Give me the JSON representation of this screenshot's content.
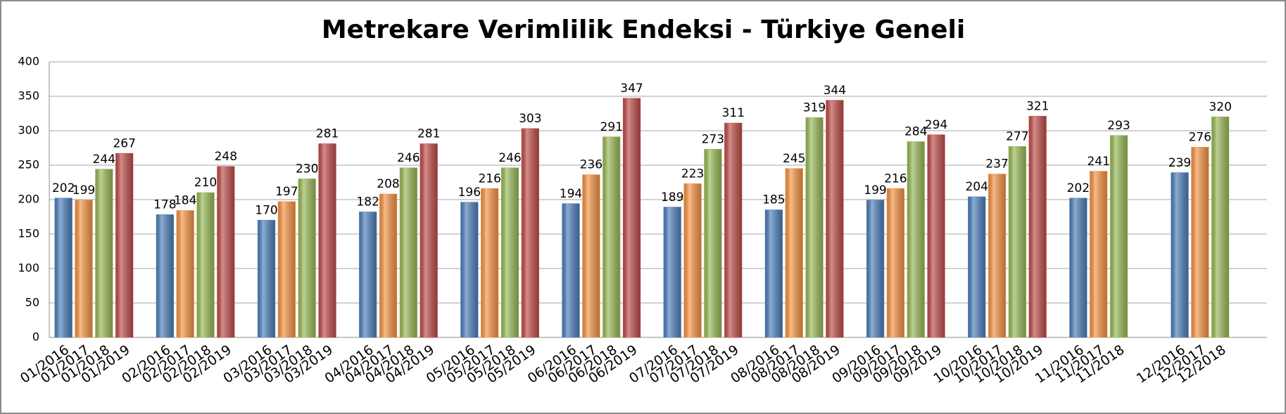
{
  "chart_data": {
    "type": "bar",
    "title": "Metrekare Verimlilik Endeksi - Türkiye Geneli",
    "ylim": [
      0,
      400
    ],
    "yticks": [
      0,
      50,
      100,
      150,
      200,
      250,
      300,
      350,
      400
    ],
    "grid": true,
    "colors": [
      "#4f81bd",
      "#f79646",
      "#9bbb59",
      "#c0504d"
    ],
    "groups": [
      {
        "categories": [
          "01/2016",
          "01/2017",
          "01/2018",
          "01/2019"
        ],
        "values": [
          202,
          199,
          244,
          267
        ]
      },
      {
        "categories": [
          "02/2016",
          "02/2017",
          "02/2018",
          "02/2019"
        ],
        "values": [
          178,
          184,
          210,
          248
        ]
      },
      {
        "categories": [
          "03/2016",
          "03/2017",
          "03/2018",
          "03/2019"
        ],
        "values": [
          170,
          197,
          230,
          281
        ]
      },
      {
        "categories": [
          "04/2016",
          "04/2017",
          "04/2018",
          "04/2019"
        ],
        "values": [
          182,
          208,
          246,
          281
        ]
      },
      {
        "categories": [
          "05/2016",
          "05/2017",
          "05/2018",
          "05/2019"
        ],
        "values": [
          196,
          216,
          246,
          303
        ]
      },
      {
        "categories": [
          "06/2016",
          "06/2017",
          "06/2018",
          "06/2019"
        ],
        "values": [
          194,
          236,
          291,
          347
        ]
      },
      {
        "categories": [
          "07/2016",
          "07/2017",
          "07/2018",
          "07/2019"
        ],
        "values": [
          189,
          223,
          273,
          311
        ]
      },
      {
        "categories": [
          "08/2016",
          "08/2017",
          "08/2018",
          "08/2019"
        ],
        "values": [
          185,
          245,
          319,
          344
        ]
      },
      {
        "categories": [
          "09/2016",
          "09/2017",
          "09/2018",
          "09/2019"
        ],
        "values": [
          199,
          216,
          284,
          294
        ]
      },
      {
        "categories": [
          "10/2016",
          "10/2017",
          "10/2018",
          "10/2019"
        ],
        "values": [
          204,
          237,
          277,
          321
        ]
      },
      {
        "categories": [
          "11/2016",
          "11/2017",
          "11/2018"
        ],
        "values": [
          202,
          241,
          293
        ]
      },
      {
        "categories": [
          "12/2016",
          "12/2017",
          "12/2018"
        ],
        "values": [
          239,
          276,
          320
        ]
      }
    ]
  }
}
